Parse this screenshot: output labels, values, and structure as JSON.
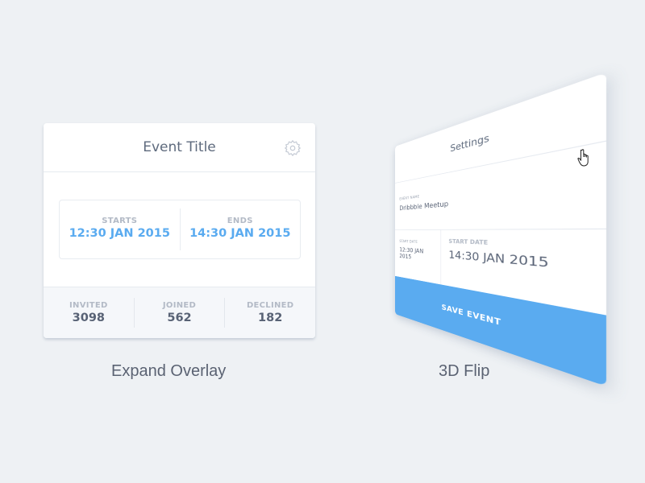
{
  "overlay_card": {
    "title": "Event Title",
    "icon": "gear-icon",
    "starts": {
      "label": "STARTS",
      "value": "12:30 JAN 2015"
    },
    "ends": {
      "label": "ENDS",
      "value": "14:30 JAN 2015"
    },
    "stats": [
      {
        "label": "INVITED",
        "value": "3098"
      },
      {
        "label": "JOINED",
        "value": "562"
      },
      {
        "label": "DECLINED",
        "value": "182"
      }
    ]
  },
  "overlay_caption": "Expand Overlay",
  "settings_card": {
    "title": "Settings",
    "event_name_label": "EVENT NAME",
    "event_name": "Dribbble Meetup",
    "start_date_label": "START DATE",
    "start_date": "12:30 JAN 2015",
    "start_date2_label": "START DATE",
    "start_date2": "14:30 JAN 2015",
    "save_label": "SAVE EVENT"
  },
  "flip_caption": "3D Flip",
  "colors": {
    "accent": "#5aabf0",
    "background": "#eef1f4"
  }
}
